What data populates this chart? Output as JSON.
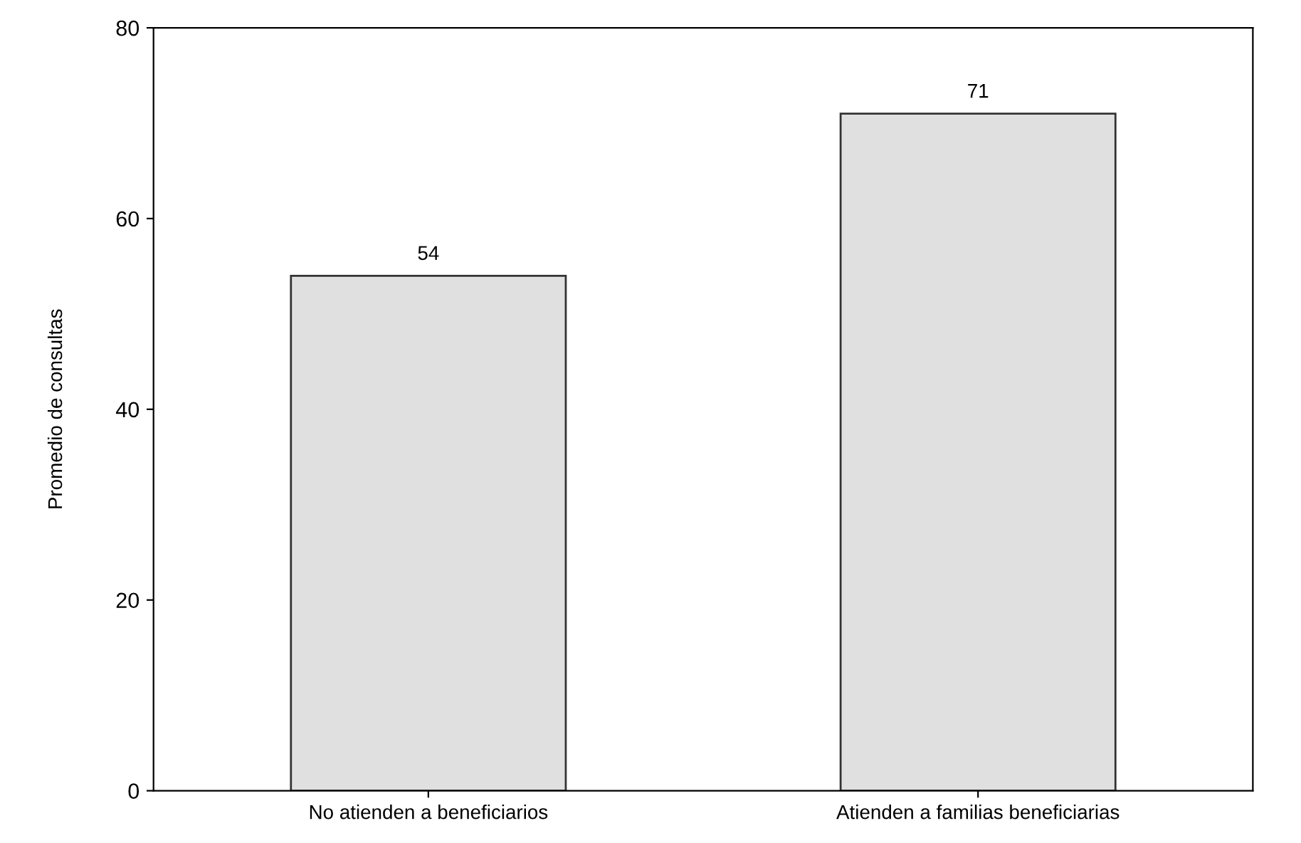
{
  "chart_data": {
    "type": "bar",
    "ylabel": "Promedio de consultas",
    "categories": [
      "No atienden a beneficiarios",
      "Atienden a familias beneficiarias"
    ],
    "values": [
      54,
      71
    ],
    "color": "#e0e0e0",
    "ylim": [
      0,
      80
    ],
    "yticks": [
      0,
      20,
      40,
      60,
      80
    ],
    "data_labels": true,
    "grid": false
  }
}
